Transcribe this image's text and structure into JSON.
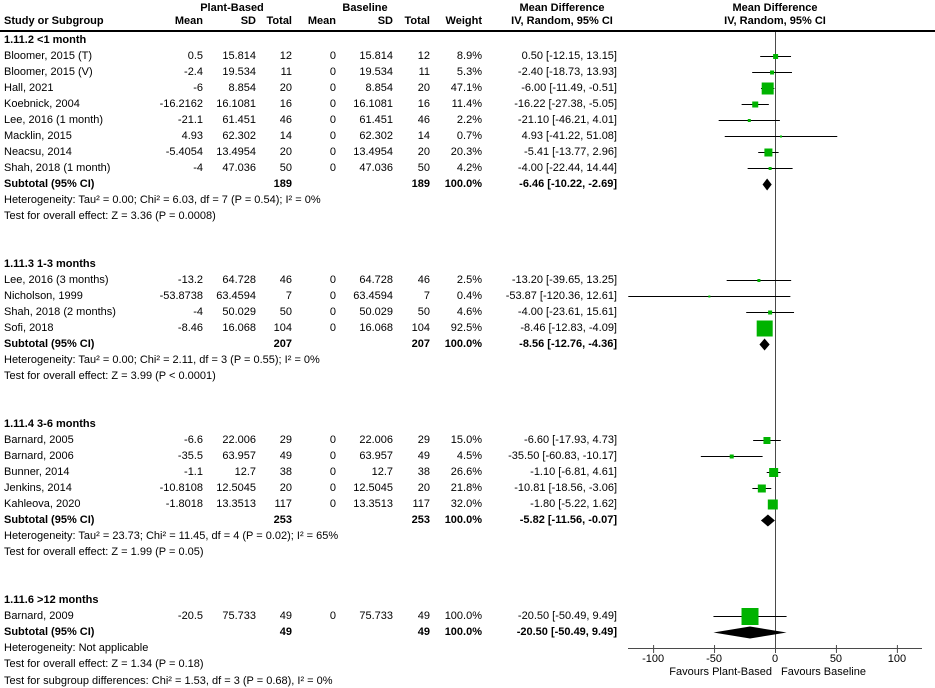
{
  "colors": {
    "marker_green": "#00b300",
    "line_black": "#000000",
    "axis_gray": "#4a4a4a",
    "diamond_black": "#000000"
  },
  "chart_data": {
    "type": "forest",
    "effect_measure": "Mean Difference",
    "model": "IV, Random, 95% CI",
    "labels": {
      "group1": "Plant-Based",
      "group2": "Baseline",
      "md_text_col": "Mean Difference",
      "md_plot_col": "Mean Difference",
      "model_text_col": "IV, Random, 95% CI",
      "model_plot_col": "IV, Random, 95% CI"
    },
    "columns": {
      "study": "Study or Subgroup",
      "mean1": "Mean",
      "sd1": "SD",
      "total1": "Total",
      "mean2": "Mean",
      "sd2": "SD",
      "total2": "Total",
      "weight": "Weight"
    },
    "axis": {
      "ticks": [
        -100,
        -50,
        0,
        50,
        100
      ],
      "tick_labels": [
        "-100",
        "-50",
        "0",
        "50",
        "100"
      ],
      "xmin": -120.5,
      "xmax": 120.5,
      "favours_left": "Favours Plant-Based",
      "favours_right": "Favours Baseline"
    },
    "sections": [
      {
        "name": "1.11.2 <1 month",
        "studies": [
          {
            "study": "Bloomer, 2015 (T)",
            "mean": "0.5",
            "sd": "15.814",
            "total": "12",
            "b_mean": "0",
            "b_sd": "15.814",
            "b_total": "12",
            "weight": "8.9%",
            "ci": "0.50 [-12.15, 13.15]",
            "md": 0.5,
            "lo": -12.15,
            "hi": 13.15,
            "w": 8.9
          },
          {
            "study": "Bloomer, 2015 (V)",
            "mean": "-2.4",
            "sd": "19.534",
            "total": "11",
            "b_mean": "0",
            "b_sd": "19.534",
            "b_total": "11",
            "weight": "5.3%",
            "ci": "-2.40 [-18.73, 13.93]",
            "md": -2.4,
            "lo": -18.73,
            "hi": 13.93,
            "w": 5.3
          },
          {
            "study": "Hall, 2021",
            "mean": "-6",
            "sd": "8.854",
            "total": "20",
            "b_mean": "0",
            "b_sd": "8.854",
            "b_total": "20",
            "weight": "47.1%",
            "ci": "-6.00 [-11.49, -0.51]",
            "md": -6,
            "lo": -11.49,
            "hi": -0.51,
            "w": 47.1
          },
          {
            "study": "Koebnick, 2004",
            "mean": "-16.2162",
            "sd": "16.1081",
            "total": "16",
            "b_mean": "0",
            "b_sd": "16.1081",
            "b_total": "16",
            "weight": "11.4%",
            "ci": "-16.22 [-27.38, -5.05]",
            "md": -16.22,
            "lo": -27.38,
            "hi": -5.05,
            "w": 11.4
          },
          {
            "study": "Lee, 2016 (1 month)",
            "mean": "-21.1",
            "sd": "61.451",
            "total": "46",
            "b_mean": "0",
            "b_sd": "61.451",
            "b_total": "46",
            "weight": "2.2%",
            "ci": "-21.10 [-46.21, 4.01]",
            "md": -21.1,
            "lo": -46.21,
            "hi": 4.01,
            "w": 2.2
          },
          {
            "study": "Macklin, 2015",
            "mean": "4.93",
            "sd": "62.302",
            "total": "14",
            "b_mean": "0",
            "b_sd": "62.302",
            "b_total": "14",
            "weight": "0.7%",
            "ci": "4.93 [-41.22, 51.08]",
            "md": 4.93,
            "lo": -41.22,
            "hi": 51.08,
            "w": 0.7
          },
          {
            "study": "Neacsu, 2014",
            "mean": "-5.4054",
            "sd": "13.4954",
            "total": "20",
            "b_mean": "0",
            "b_sd": "13.4954",
            "b_total": "20",
            "weight": "20.3%",
            "ci": "-5.41 [-13.77, 2.96]",
            "md": -5.41,
            "lo": -13.77,
            "hi": 2.96,
            "w": 20.3
          },
          {
            "study": "Shah, 2018 (1 month)",
            "mean": "-4",
            "sd": "47.036",
            "total": "50",
            "b_mean": "0",
            "b_sd": "47.036",
            "b_total": "50",
            "weight": "4.2%",
            "ci": "-4.00 [-22.44, 14.44]",
            "md": -4,
            "lo": -22.44,
            "hi": 14.44,
            "w": 4.2
          }
        ],
        "subtotal": {
          "label": "Subtotal (95% CI)",
          "total": "189",
          "b_total": "189",
          "weight": "100.0%",
          "ci": "-6.46 [-10.22, -2.69]",
          "md": -6.46,
          "lo": -10.22,
          "hi": -2.69
        },
        "heterogeneity": "Heterogeneity: Tau² = 0.00; Chi² = 6.03, df = 7 (P = 0.54); I² = 0%",
        "overall": "Test for overall effect: Z = 3.36 (P = 0.0008)"
      },
      {
        "name": "1.11.3 1-3 months",
        "studies": [
          {
            "study": "Lee, 2016 (3 months)",
            "mean": "-13.2",
            "sd": "64.728",
            "total": "46",
            "b_mean": "0",
            "b_sd": "64.728",
            "b_total": "46",
            "weight": "2.5%",
            "ci": "-13.20 [-39.65, 13.25]",
            "md": -13.2,
            "lo": -39.65,
            "hi": 13.25,
            "w": 2.5
          },
          {
            "study": "Nicholson, 1999",
            "mean": "-53.8738",
            "sd": "63.4594",
            "total": "7",
            "b_mean": "0",
            "b_sd": "63.4594",
            "b_total": "7",
            "weight": "0.4%",
            "ci": "-53.87 [-120.36, 12.61]",
            "md": -53.87,
            "lo": -120.36,
            "hi": 12.61,
            "w": 0.4
          },
          {
            "study": "Shah, 2018 (2 months)",
            "mean": "-4",
            "sd": "50.029",
            "total": "50",
            "b_mean": "0",
            "b_sd": "50.029",
            "b_total": "50",
            "weight": "4.6%",
            "ci": "-4.00 [-23.61, 15.61]",
            "md": -4,
            "lo": -23.61,
            "hi": 15.61,
            "w": 4.6
          },
          {
            "study": "Sofi, 2018",
            "mean": "-8.46",
            "sd": "16.068",
            "total": "104",
            "b_mean": "0",
            "b_sd": "16.068",
            "b_total": "104",
            "weight": "92.5%",
            "ci": "-8.46 [-12.83, -4.09]",
            "md": -8.46,
            "lo": -12.83,
            "hi": -4.09,
            "w": 92.5
          }
        ],
        "subtotal": {
          "label": "Subtotal (95% CI)",
          "total": "207",
          "b_total": "207",
          "weight": "100.0%",
          "ci": "-8.56 [-12.76, -4.36]",
          "md": -8.56,
          "lo": -12.76,
          "hi": -4.36
        },
        "heterogeneity": "Heterogeneity: Tau² = 0.00; Chi² = 2.11, df = 3 (P = 0.55); I² = 0%",
        "overall": "Test for overall effect: Z = 3.99 (P < 0.0001)"
      },
      {
        "name": "1.11.4 3-6 months",
        "studies": [
          {
            "study": "Barnard, 2005",
            "mean": "-6.6",
            "sd": "22.006",
            "total": "29",
            "b_mean": "0",
            "b_sd": "22.006",
            "b_total": "29",
            "weight": "15.0%",
            "ci": "-6.60 [-17.93, 4.73]",
            "md": -6.6,
            "lo": -17.93,
            "hi": 4.73,
            "w": 15.0
          },
          {
            "study": "Barnard, 2006",
            "mean": "-35.5",
            "sd": "63.957",
            "total": "49",
            "b_mean": "0",
            "b_sd": "63.957",
            "b_total": "49",
            "weight": "4.5%",
            "ci": "-35.50 [-60.83, -10.17]",
            "md": -35.5,
            "lo": -60.83,
            "hi": -10.17,
            "w": 4.5
          },
          {
            "study": "Bunner, 2014",
            "mean": "-1.1",
            "sd": "12.7",
            "total": "38",
            "b_mean": "0",
            "b_sd": "12.7",
            "b_total": "38",
            "weight": "26.6%",
            "ci": "-1.10 [-6.81, 4.61]",
            "md": -1.1,
            "lo": -6.81,
            "hi": 4.61,
            "w": 26.6
          },
          {
            "study": "Jenkins, 2014",
            "mean": "-10.8108",
            "sd": "12.5045",
            "total": "20",
            "b_mean": "0",
            "b_sd": "12.5045",
            "b_total": "20",
            "weight": "21.8%",
            "ci": "-10.81 [-18.56, -3.06]",
            "md": -10.81,
            "lo": -18.56,
            "hi": -3.06,
            "w": 21.8
          },
          {
            "study": "Kahleova, 2020",
            "mean": "-1.8018",
            "sd": "13.3513",
            "total": "117",
            "b_mean": "0",
            "b_sd": "13.3513",
            "b_total": "117",
            "weight": "32.0%",
            "ci": "-1.80 [-5.22, 1.62]",
            "md": -1.8,
            "lo": -5.22,
            "hi": 1.62,
            "w": 32.0
          }
        ],
        "subtotal": {
          "label": "Subtotal (95% CI)",
          "total": "253",
          "b_total": "253",
          "weight": "100.0%",
          "ci": "-5.82 [-11.56, -0.07]",
          "md": -5.82,
          "lo": -11.56,
          "hi": -0.07
        },
        "heterogeneity": "Heterogeneity: Tau² = 23.73; Chi² = 11.45, df = 4 (P = 0.02); I² = 65%",
        "overall": "Test for overall effect: Z = 1.99 (P = 0.05)"
      },
      {
        "name": "1.11.6 >12 months",
        "studies": [
          {
            "study": "Barnard, 2009",
            "mean": "-20.5",
            "sd": "75.733",
            "total": "49",
            "b_mean": "0",
            "b_sd": "75.733",
            "b_total": "49",
            "weight": "100.0%",
            "ci": "-20.50 [-50.49, 9.49]",
            "md": -20.5,
            "lo": -50.49,
            "hi": 9.49,
            "w": 100.0
          }
        ],
        "subtotal": {
          "label": "Subtotal (95% CI)",
          "total": "49",
          "b_total": "49",
          "weight": "100.0%",
          "ci": "-20.50 [-50.49, 9.49]",
          "md": -20.5,
          "lo": -50.49,
          "hi": 9.49
        },
        "heterogeneity": "Heterogeneity: Not applicable",
        "overall": "Test for overall effect: Z = 1.34 (P = 0.18)"
      }
    ],
    "footer": "Test for subgroup differences: Chi² = 1.53, df = 3 (P = 0.68), I² = 0%"
  }
}
